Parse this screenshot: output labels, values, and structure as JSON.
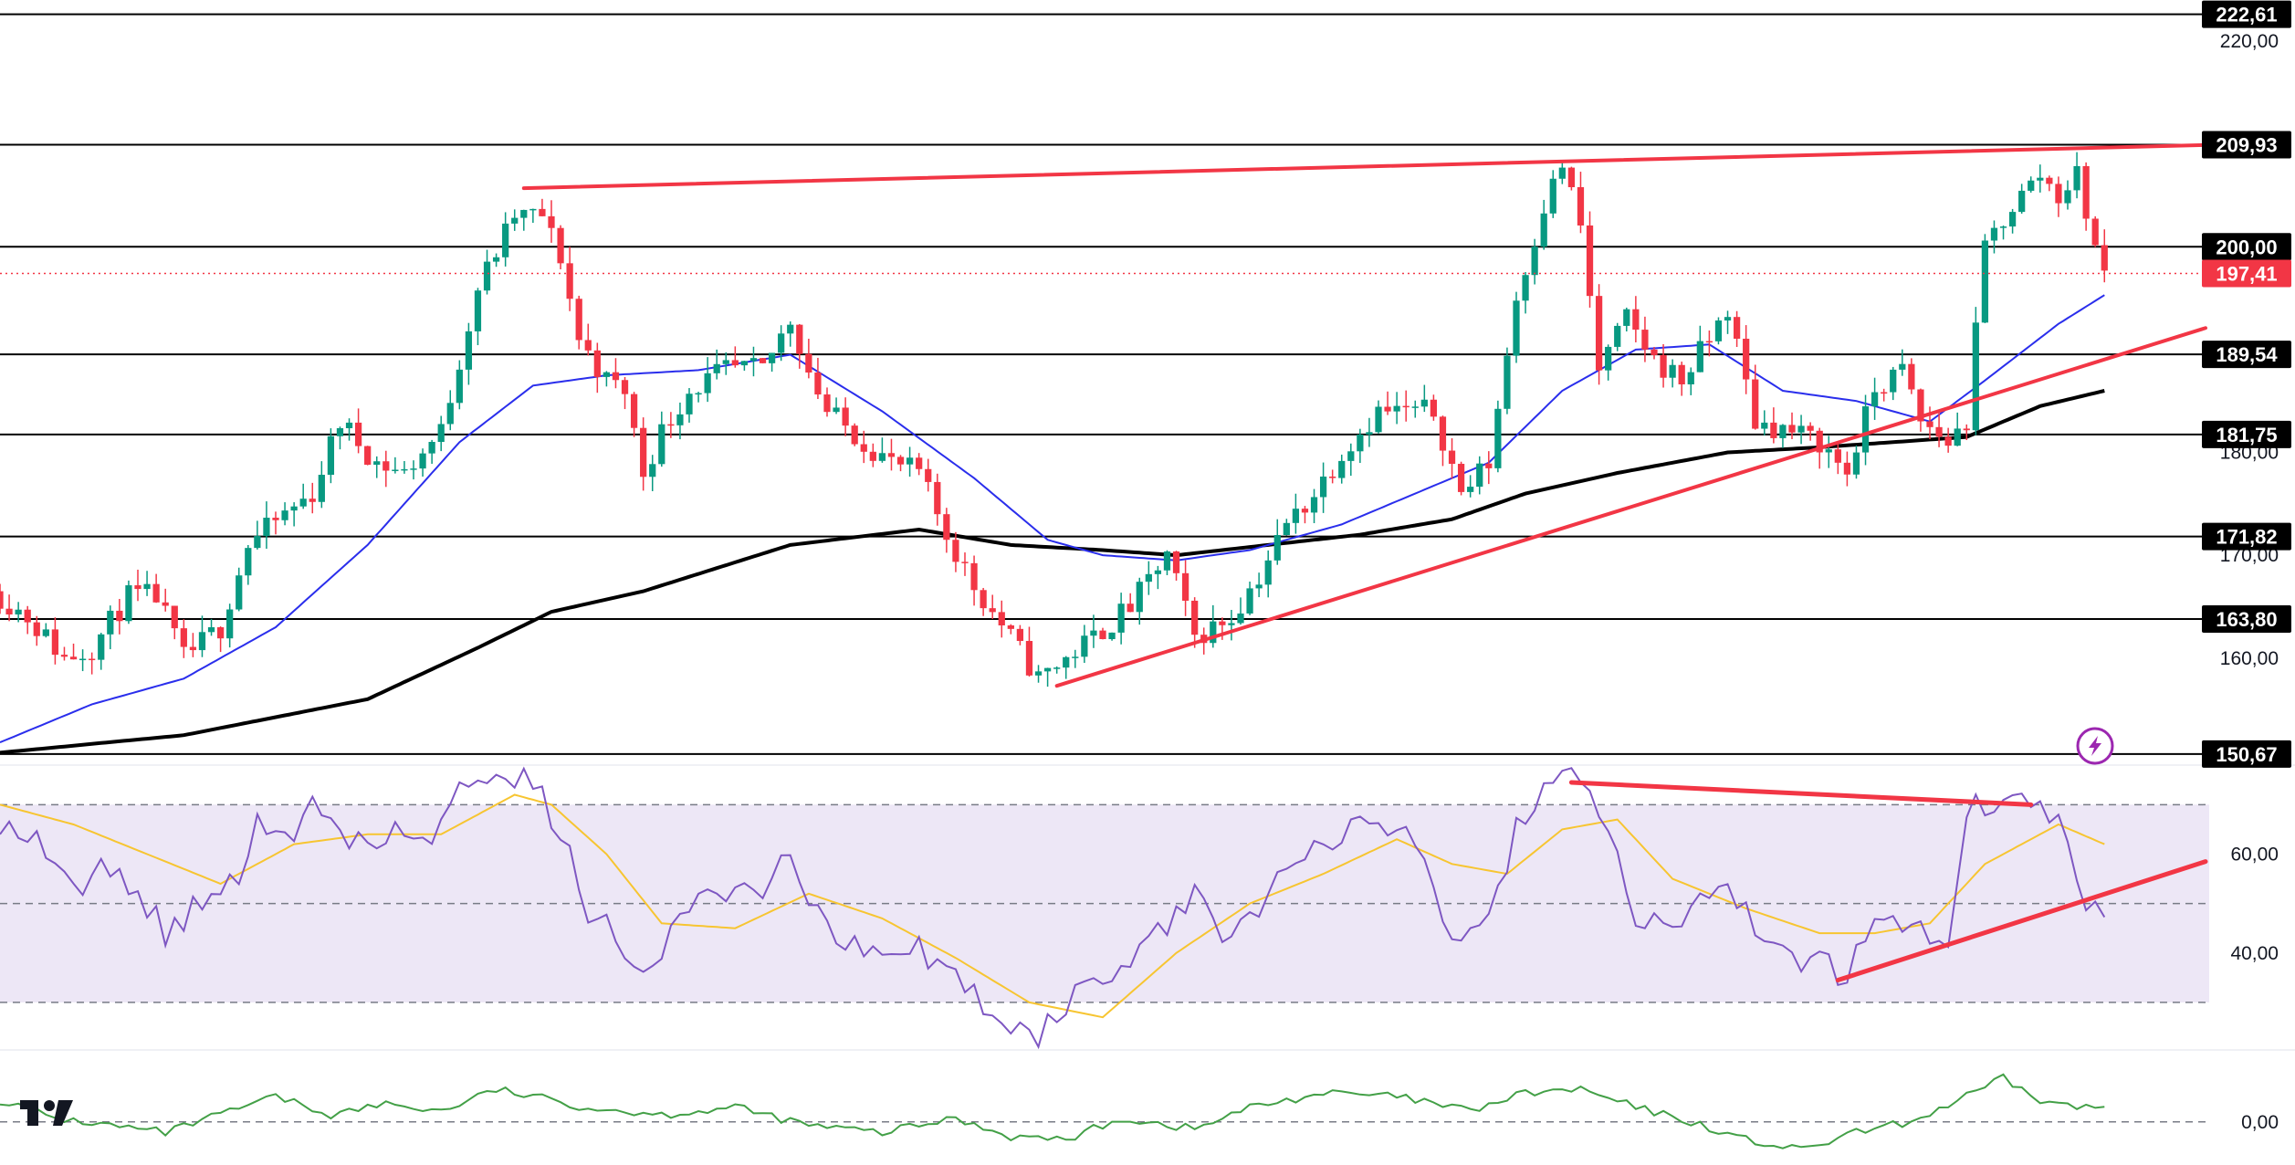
{
  "colors": {
    "up": "#089981",
    "down": "#f23645",
    "trendline": "#f23645",
    "ma_fast": "#2a2eec",
    "ma_slow": "#000000",
    "rsi": "#7e57c2",
    "rsi_ma": "#f7c531",
    "rsi_band": "#ede7f6",
    "momentum": "#43a047",
    "current_price": "#f23645"
  },
  "icons": {
    "watermark": "tradingview-logo-icon",
    "alert": "lightning-icon"
  },
  "chart_data": [
    {
      "type": "candlestick",
      "panel": "price",
      "ylim": [
        150.3,
        224.0
      ],
      "xlim": [
        0,
        240
      ],
      "y_ticks": [
        "220,00",
        "180,00",
        "170,00",
        "160,00"
      ],
      "y_tick_values": [
        220,
        180,
        170,
        160
      ],
      "horizontal_levels": [
        {
          "value": 222.61,
          "label": "222,61"
        },
        {
          "value": 209.93,
          "label": "209,93"
        },
        {
          "value": 200.0,
          "label": "200,00"
        },
        {
          "value": 189.54,
          "label": "189,54"
        },
        {
          "value": 181.75,
          "label": "181,75"
        },
        {
          "value": 171.82,
          "label": "171,82"
        },
        {
          "value": 163.8,
          "label": "163,80"
        },
        {
          "value": 150.67,
          "label": "150,67"
        }
      ],
      "current_price": {
        "value": 197.41,
        "label": "197,41"
      },
      "trendlines": [
        {
          "from": [
            57,
            205.7
          ],
          "to": [
            240,
            209.9
          ]
        },
        {
          "from": [
            115,
            157.3
          ],
          "to": [
            240,
            192.1
          ]
        }
      ],
      "anchors_close": [
        [
          0,
          166
        ],
        [
          3,
          164
        ],
        [
          7,
          160
        ],
        [
          10,
          161
        ],
        [
          14,
          166
        ],
        [
          17,
          166
        ],
        [
          20,
          160
        ],
        [
          24,
          163
        ],
        [
          27,
          171
        ],
        [
          31,
          174
        ],
        [
          34,
          176
        ],
        [
          37,
          183
        ],
        [
          41,
          179
        ],
        [
          44,
          178
        ],
        [
          48,
          182
        ],
        [
          52,
          196
        ],
        [
          56,
          203
        ],
        [
          59,
          203
        ],
        [
          61,
          199
        ],
        [
          63,
          191
        ],
        [
          66,
          187
        ],
        [
          68,
          186
        ],
        [
          70,
          178
        ],
        [
          72,
          182
        ],
        [
          75,
          186
        ],
        [
          79,
          188
        ],
        [
          83,
          188
        ],
        [
          86,
          193
        ],
        [
          88,
          188
        ],
        [
          90,
          184
        ],
        [
          94,
          181
        ],
        [
          97,
          179
        ],
        [
          100,
          178
        ],
        [
          103,
          172
        ],
        [
          106,
          167
        ],
        [
          110,
          162
        ],
        [
          113,
          158
        ],
        [
          116,
          160
        ],
        [
          119,
          162
        ],
        [
          123,
          165
        ],
        [
          127,
          170
        ],
        [
          130,
          162
        ],
        [
          134,
          164
        ],
        [
          137,
          168
        ],
        [
          140,
          173
        ],
        [
          143,
          176
        ],
        [
          146,
          180
        ],
        [
          150,
          184
        ],
        [
          153,
          184
        ],
        [
          156,
          184
        ],
        [
          159,
          176
        ],
        [
          162,
          179
        ],
        [
          165,
          195
        ],
        [
          168,
          204
        ],
        [
          170,
          208
        ],
        [
          172,
          202
        ],
        [
          174,
          188
        ],
        [
          177,
          193
        ],
        [
          180,
          189
        ],
        [
          183,
          187
        ],
        [
          186,
          191
        ],
        [
          188,
          194
        ],
        [
          191,
          183
        ],
        [
          195,
          182
        ],
        [
          198,
          181
        ],
        [
          201,
          178
        ],
        [
          204,
          186
        ],
        [
          207,
          188
        ],
        [
          209,
          183
        ],
        [
          212,
          181
        ],
        [
          214,
          183
        ],
        [
          216,
          200
        ],
        [
          219,
          204
        ],
        [
          222,
          207
        ],
        [
          224,
          205
        ],
        [
          226,
          207
        ],
        [
          228,
          200
        ],
        [
          229,
          197.4
        ]
      ],
      "series": [
        {
          "name": "",
          "kind": "moving_average_fast",
          "points": [
            [
              0,
              151.8
            ],
            [
              10,
              155.5
            ],
            [
              20,
              158.0
            ],
            [
              30,
              163.0
            ],
            [
              40,
              171.0
            ],
            [
              50,
              181.0
            ],
            [
              58,
              186.5
            ],
            [
              66,
              187.5
            ],
            [
              76,
              188.0
            ],
            [
              86,
              189.5
            ],
            [
              96,
              184.0
            ],
            [
              106,
              177.5
            ],
            [
              114,
              171.5
            ],
            [
              120,
              170.0
            ],
            [
              128,
              169.5
            ],
            [
              136,
              170.5
            ],
            [
              146,
              173.0
            ],
            [
              154,
              176.0
            ],
            [
              162,
              179.0
            ],
            [
              170,
              186.0
            ],
            [
              178,
              190.0
            ],
            [
              186,
              190.5
            ],
            [
              194,
              186.0
            ],
            [
              202,
              185.0
            ],
            [
              210,
              183.0
            ],
            [
              216,
              187.0
            ],
            [
              224,
              192.5
            ],
            [
              229,
              195.3
            ]
          ]
        },
        {
          "name": "",
          "kind": "moving_average_slow",
          "points": [
            [
              0,
              150.8
            ],
            [
              20,
              152.5
            ],
            [
              40,
              156.0
            ],
            [
              52,
              161.0
            ],
            [
              60,
              164.5
            ],
            [
              70,
              166.5
            ],
            [
              86,
              171.0
            ],
            [
              100,
              172.5
            ],
            [
              110,
              171.0
            ],
            [
              120,
              170.5
            ],
            [
              128,
              170.0
            ],
            [
              138,
              171.0
            ],
            [
              148,
              172.0
            ],
            [
              158,
              173.5
            ],
            [
              166,
              176.0
            ],
            [
              176,
              178.0
            ],
            [
              188,
              180.0
            ],
            [
              198,
              180.5
            ],
            [
              206,
              181.0
            ],
            [
              214,
              181.5
            ],
            [
              222,
              184.5
            ],
            [
              229,
              186.0
            ]
          ]
        }
      ]
    },
    {
      "type": "line",
      "panel": "rsi",
      "ylim": [
        25,
        78
      ],
      "y_ticks": [
        "60,00",
        "40,00"
      ],
      "y_tick_values": [
        60,
        40
      ],
      "band": [
        30,
        70
      ],
      "midline": 50,
      "trendlines": [
        {
          "from": [
            171,
            74.5
          ],
          "to": [
            221,
            70.0
          ]
        },
        {
          "from": [
            200,
            34.5
          ],
          "to": [
            240,
            58.5
          ]
        }
      ],
      "series": [
        {
          "name": "",
          "kind": "rsi",
          "points": [
            [
              0,
              67
            ],
            [
              4,
              63
            ],
            [
              8,
              52
            ],
            [
              12,
              58
            ],
            [
              15,
              52
            ],
            [
              18,
              44
            ],
            [
              22,
              50
            ],
            [
              26,
              56
            ],
            [
              28,
              69
            ],
            [
              31,
              62
            ],
            [
              34,
              70
            ],
            [
              37,
              63
            ],
            [
              41,
              64
            ],
            [
              44,
              64
            ],
            [
              47,
              63
            ],
            [
              50,
              74
            ],
            [
              54,
              78
            ],
            [
              58,
              74
            ],
            [
              61,
              65
            ],
            [
              64,
              48
            ],
            [
              67,
              44
            ],
            [
              70,
              36
            ],
            [
              74,
              47
            ],
            [
              78,
              53
            ],
            [
              82,
              51
            ],
            [
              86,
              61
            ],
            [
              89,
              48
            ],
            [
              92,
              42
            ],
            [
              96,
              38
            ],
            [
              100,
              41
            ],
            [
              104,
              35
            ],
            [
              108,
              28
            ],
            [
              113,
              24
            ],
            [
              118,
              33
            ],
            [
              122,
              37
            ],
            [
              127,
              45
            ],
            [
              130,
              52
            ],
            [
              133,
              45
            ],
            [
              137,
              48
            ],
            [
              140,
              60
            ],
            [
              144,
              63
            ],
            [
              148,
              65
            ],
            [
              150,
              67
            ],
            [
              154,
              62
            ],
            [
              158,
              44
            ],
            [
              162,
              47
            ],
            [
              165,
              65
            ],
            [
              168,
              72
            ],
            [
              171,
              76
            ],
            [
              174,
              69
            ],
            [
              178,
              48
            ],
            [
              181,
              44
            ],
            [
              185,
              51
            ],
            [
              188,
              56
            ],
            [
              191,
              44
            ],
            [
              195,
              38
            ],
            [
              198,
              39
            ],
            [
              201,
              35
            ],
            [
              204,
              48
            ],
            [
              208,
              45
            ],
            [
              212,
              43
            ],
            [
              214,
              69
            ],
            [
              218,
              70
            ],
            [
              221,
              71
            ],
            [
              224,
              66
            ],
            [
              227,
              50
            ],
            [
              229,
              48
            ]
          ]
        },
        {
          "name": "",
          "kind": "rsi_ma",
          "points": [
            [
              0,
              70
            ],
            [
              8,
              66
            ],
            [
              16,
              60
            ],
            [
              24,
              54
            ],
            [
              32,
              62
            ],
            [
              40,
              64
            ],
            [
              48,
              64
            ],
            [
              56,
              72
            ],
            [
              60,
              70
            ],
            [
              66,
              60
            ],
            [
              72,
              46
            ],
            [
              80,
              45
            ],
            [
              88,
              52
            ],
            [
              96,
              47
            ],
            [
              104,
              39
            ],
            [
              112,
              30
            ],
            [
              120,
              27
            ],
            [
              128,
              40
            ],
            [
              136,
              50
            ],
            [
              144,
              56
            ],
            [
              152,
              63
            ],
            [
              158,
              58
            ],
            [
              164,
              56
            ],
            [
              170,
              65
            ],
            [
              176,
              67
            ],
            [
              182,
              55
            ],
            [
              190,
              49
            ],
            [
              198,
              44
            ],
            [
              204,
              44
            ],
            [
              210,
              46
            ],
            [
              216,
              58
            ],
            [
              224,
              66
            ],
            [
              229,
              62
            ]
          ]
        }
      ]
    },
    {
      "type": "area",
      "panel": "momentum",
      "ylim": [
        -0.6,
        1.0
      ],
      "y_ticks": [
        "0,00"
      ],
      "y_tick_values": [
        0
      ],
      "series": [
        {
          "name": "",
          "kind": "momentum",
          "points": [
            [
              0,
              0.3
            ],
            [
              6,
              0.05
            ],
            [
              12,
              -0.05
            ],
            [
              18,
              -0.15
            ],
            [
              24,
              0.1
            ],
            [
              30,
              0.35
            ],
            [
              36,
              0.1
            ],
            [
              42,
              0.25
            ],
            [
              48,
              0.15
            ],
            [
              54,
              0.45
            ],
            [
              58,
              0.35
            ],
            [
              64,
              0.2
            ],
            [
              72,
              0.1
            ],
            [
              80,
              0.2
            ],
            [
              88,
              -0.05
            ],
            [
              96,
              -0.15
            ],
            [
              104,
              0.05
            ],
            [
              110,
              -0.2
            ],
            [
              116,
              -0.25
            ],
            [
              122,
              0.05
            ],
            [
              130,
              -0.1
            ],
            [
              136,
              0.2
            ],
            [
              144,
              0.4
            ],
            [
              152,
              0.35
            ],
            [
              160,
              0.15
            ],
            [
              166,
              0.4
            ],
            [
              172,
              0.45
            ],
            [
              178,
              0.2
            ],
            [
              184,
              0.0
            ],
            [
              190,
              -0.25
            ],
            [
              196,
              -0.4
            ],
            [
              202,
              -0.15
            ],
            [
              208,
              0.0
            ],
            [
              214,
              0.35
            ],
            [
              218,
              0.6
            ],
            [
              222,
              0.3
            ],
            [
              226,
              0.2
            ],
            [
              229,
              0.2
            ]
          ]
        }
      ]
    }
  ]
}
